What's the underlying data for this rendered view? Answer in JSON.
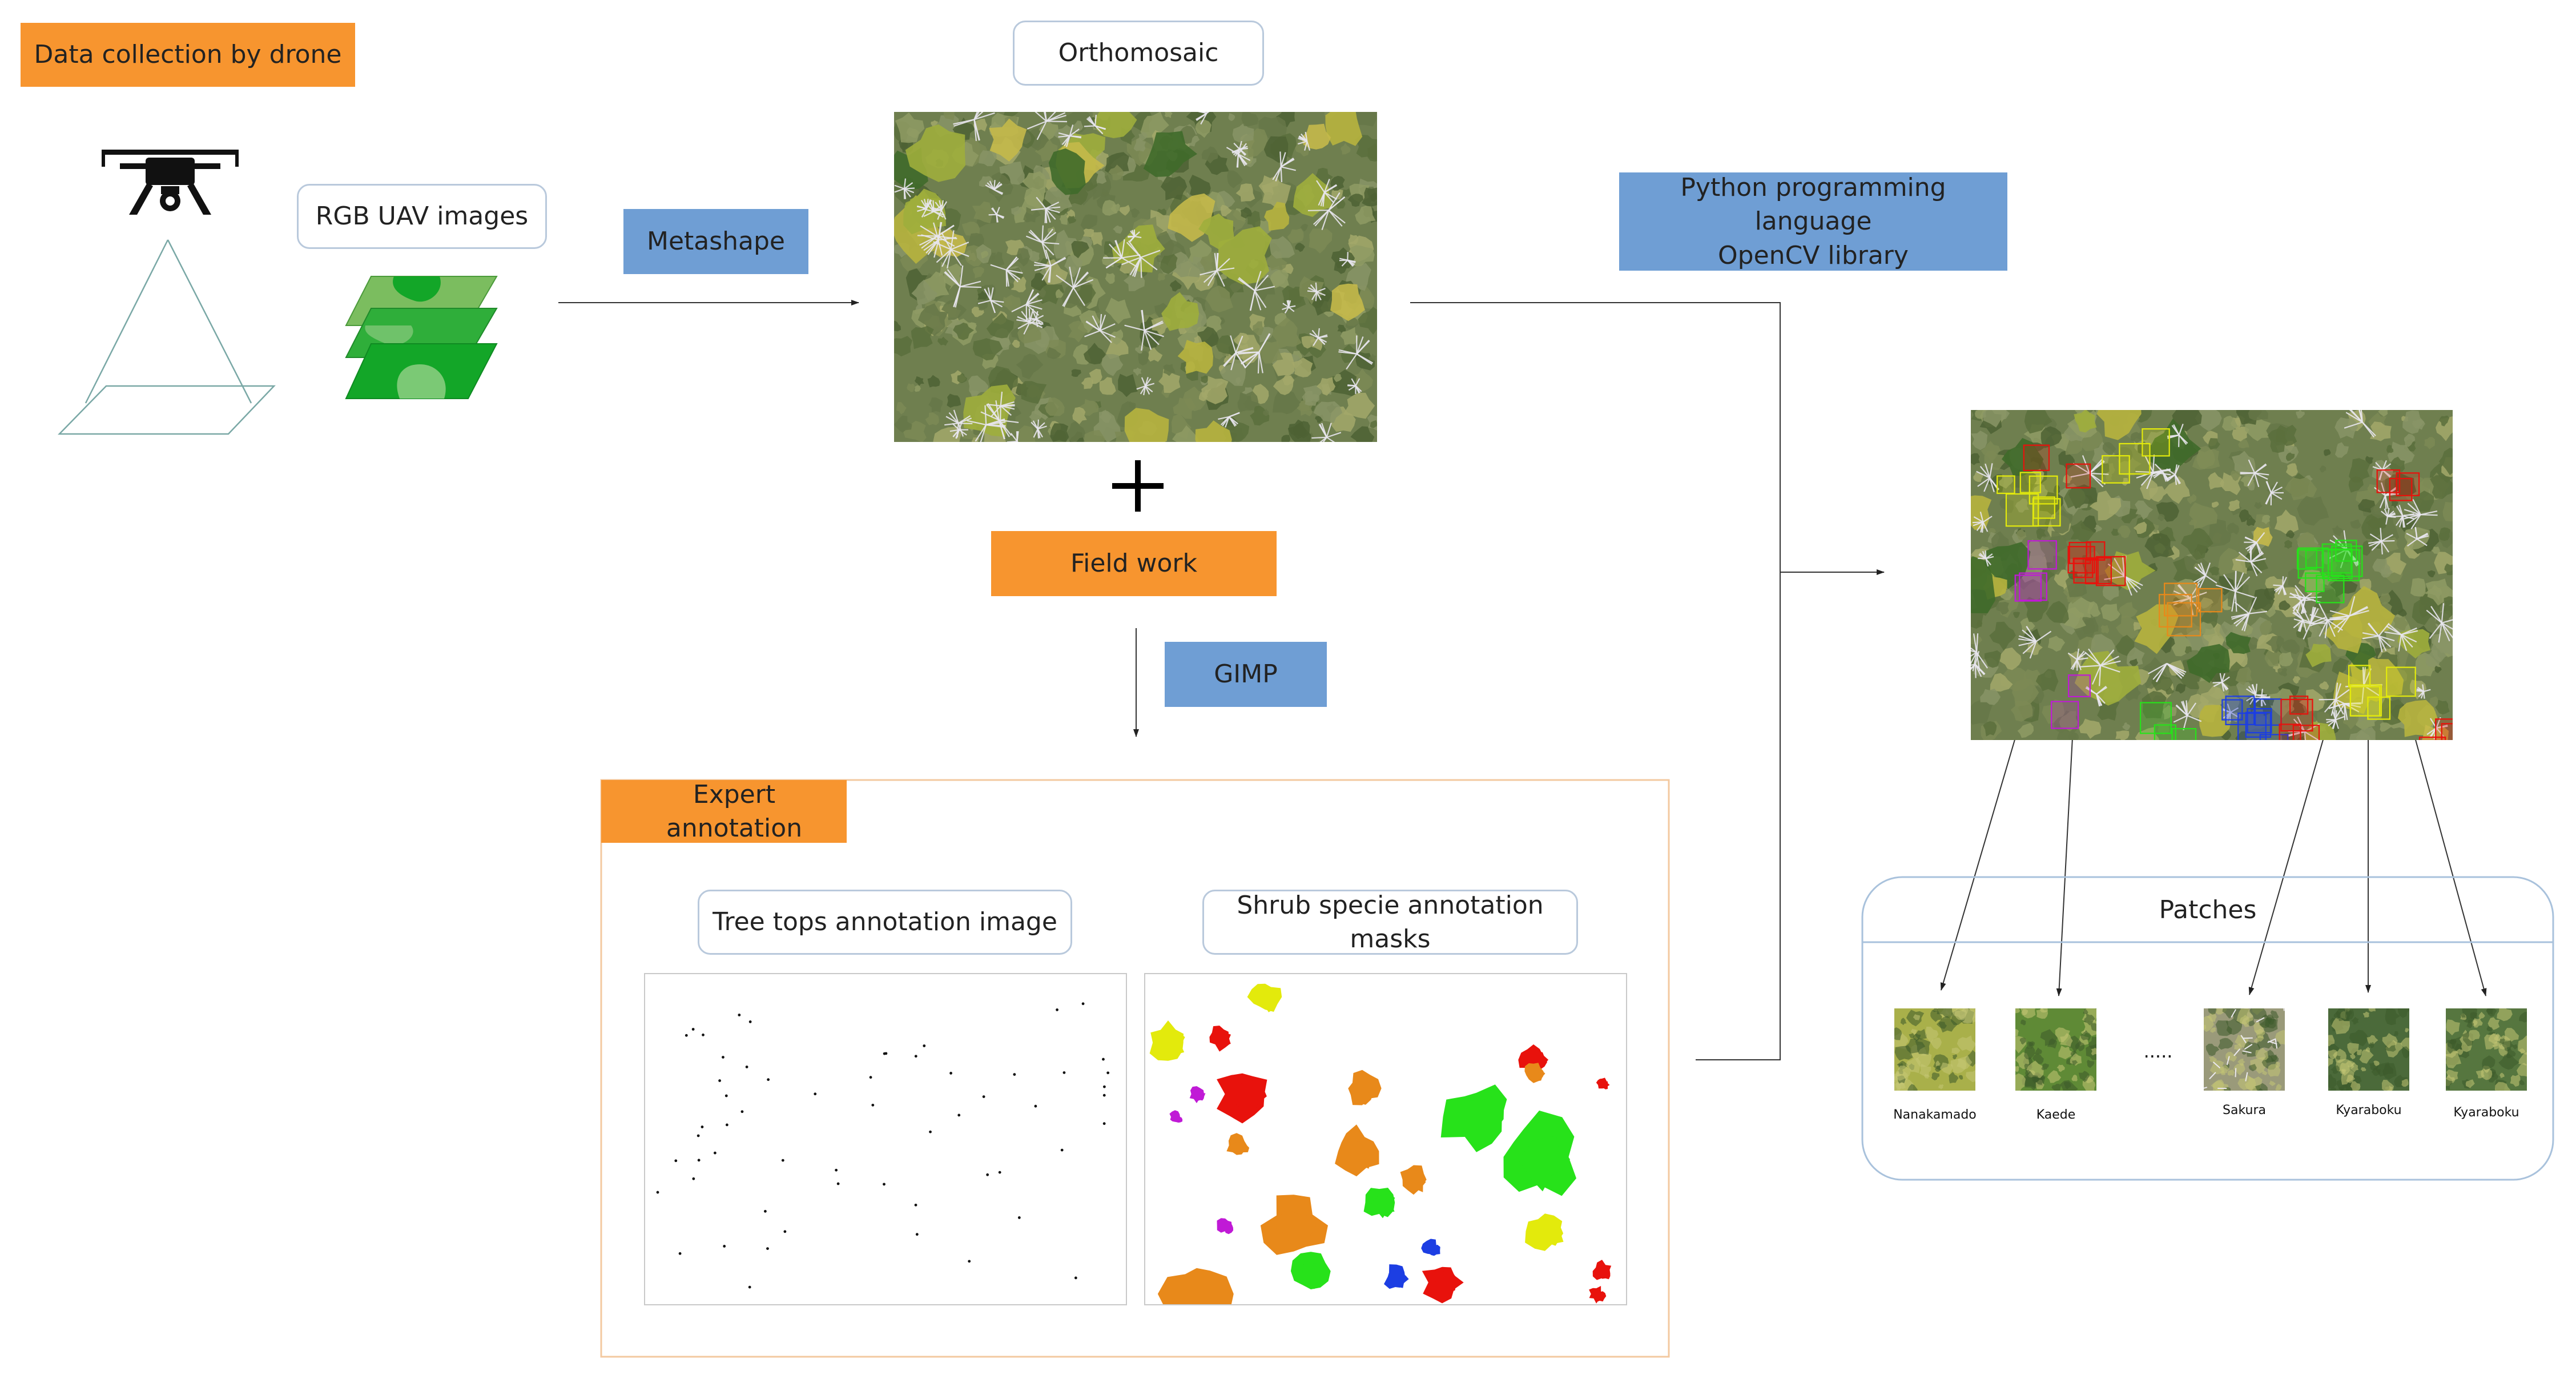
{
  "title_box": {
    "label": "Data collection by drone",
    "color": "#f7952f"
  },
  "rgb_images": {
    "label": "RGB UAV images"
  },
  "metashape": {
    "label": "Metashape",
    "color": "#6f9ed4"
  },
  "orthomosaic": {
    "label": "Orthomosaic"
  },
  "field_work": {
    "label": "Field work"
  },
  "gimp": {
    "label": "GIMP"
  },
  "python_box": {
    "line1": "Python programming language",
    "line2": "OpenCV library"
  },
  "expert_annotation": {
    "label": "Expert annotation",
    "treetops": {
      "label": "Tree tops annotation image"
    },
    "shrubs": {
      "label": "Shrub specie annotation masks"
    }
  },
  "patches": {
    "title": "Patches",
    "ellipsis": ".....",
    "items": [
      {
        "label": "Nanakamado",
        "tone": "#a9b04a"
      },
      {
        "label": "Kaede",
        "tone": "#5f8a36"
      },
      {
        "label": "Sakura",
        "tone": "#9a9a7a"
      },
      {
        "label": "Kyaraboku",
        "tone": "#4b6a3a"
      },
      {
        "label": "Kyaraboku",
        "tone": "#56763f"
      }
    ]
  },
  "species_colors": {
    "red": "#e8120c",
    "orange": "#e8891a",
    "yellow": "#e3ea0c",
    "green": "#27e21a",
    "blue": "#1c3ee3",
    "purple": "#c01ad6"
  }
}
